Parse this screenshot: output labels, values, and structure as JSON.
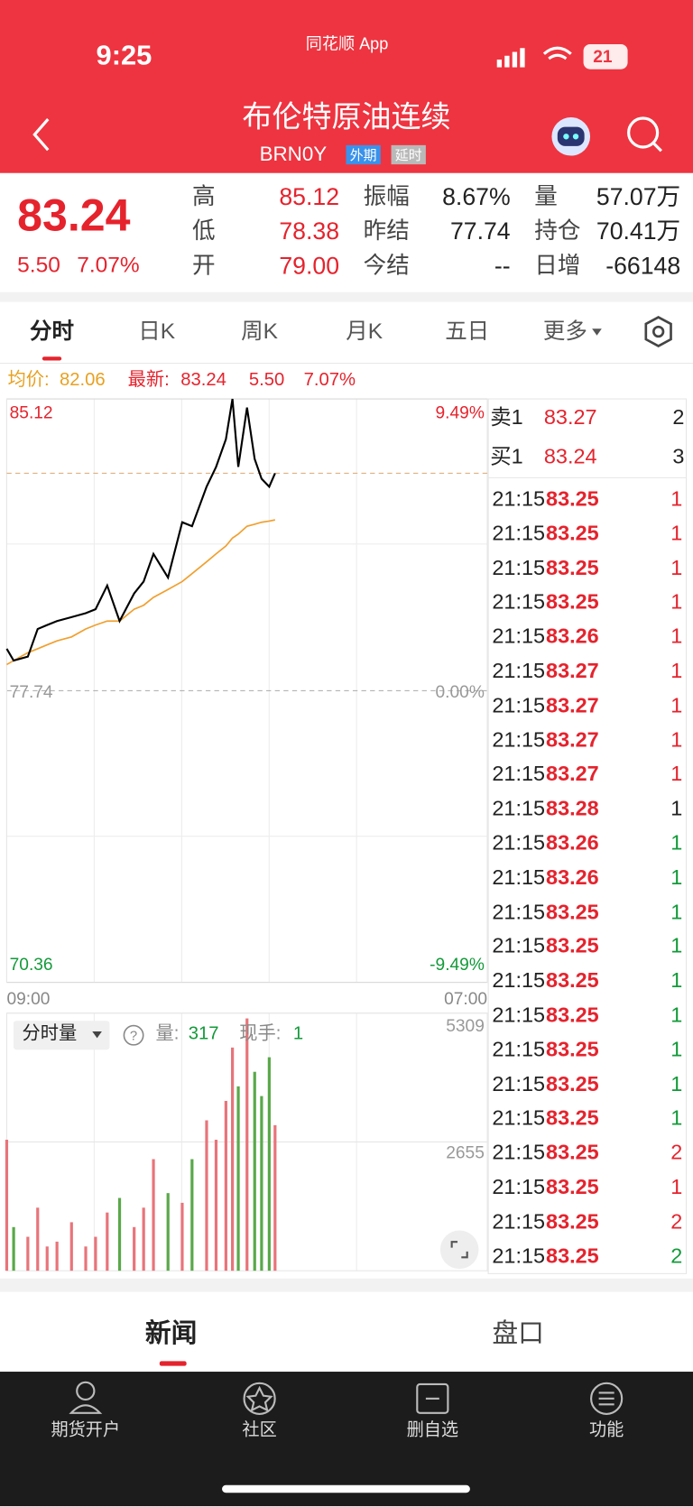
{
  "status_bar": {
    "time": "9:25",
    "app": "同花顺 App",
    "battery": "21"
  },
  "header": {
    "title": "布伦特原油连续",
    "code": "BRN0Y",
    "tags": [
      "外期",
      "延时"
    ]
  },
  "quote": {
    "price": "83.24",
    "change": "5.50",
    "change_pct": "7.07%",
    "stats": [
      {
        "label": "高",
        "value": "85.12"
      },
      {
        "label": "振幅",
        "value": "8.67%"
      },
      {
        "label": "量",
        "value": "57.07万"
      },
      {
        "label": "低",
        "value": "78.38"
      },
      {
        "label": "昨结",
        "value": "77.74"
      },
      {
        "label": "持仓",
        "value": "70.41万"
      },
      {
        "label": "开",
        "value": "79.00"
      },
      {
        "label": "今结",
        "value": "--"
      },
      {
        "label": "日增",
        "value": "-66148"
      }
    ]
  },
  "tabs": [
    "分时",
    "日K",
    "周K",
    "月K",
    "五日",
    "更多"
  ],
  "chart_info": {
    "avg_label": "均价:",
    "avg": "82.06",
    "last_label": "最新:",
    "last": "83.24",
    "change": "5.50",
    "change_pct": "7.07%"
  },
  "volume_info": {
    "selector": "分时量",
    "volume_label": "量:",
    "volume": "317",
    "hand_label": "现手:",
    "hand": "1"
  },
  "chart_data": [
    {
      "type": "line",
      "x": [
        0,
        19,
        58,
        85,
        111,
        138,
        178,
        217,
        244,
        276,
        310,
        350,
        376,
        403,
        443,
        482,
        509,
        549,
        575,
        602,
        620,
        636,
        660,
        681,
        700,
        721,
        737
      ],
      "xlim": [
        0,
        1320
      ],
      "xticks": [
        {
          "value": 0,
          "label": "09:00"
        },
        {
          "value": 1320,
          "label": "07:00"
        }
      ],
      "ylim": [
        70.36,
        85.12
      ],
      "yticks": [
        85.12,
        77.74,
        70.36
      ],
      "y2lim": [
        -9.49,
        9.49
      ],
      "y2ticks": [
        {
          "value": 9.49,
          "label": "9.49%"
        },
        {
          "value": 0,
          "label": "0.00%"
        },
        {
          "value": -9.49,
          "label": "-9.49%"
        }
      ],
      "series": [
        {
          "color": "#000000",
          "values": [
            78.8,
            78.5,
            78.6,
            79.3,
            79.4,
            79.5,
            79.6,
            79.7,
            79.8,
            80.4,
            79.5,
            80.2,
            80.5,
            81.2,
            80.6,
            82.0,
            81.9,
            82.9,
            83.4,
            84.1,
            85.12,
            83.4,
            84.9,
            83.6,
            83.1,
            82.9,
            83.24
          ]
        },
        {
          "color": "#f0a030",
          "values": [
            78.4,
            78.5,
            78.7,
            78.8,
            78.9,
            79.0,
            79.1,
            79.3,
            79.4,
            79.5,
            79.5,
            79.8,
            79.9,
            80.1,
            80.3,
            80.5,
            80.7,
            81.0,
            81.2,
            81.4,
            81.6,
            81.7,
            81.9,
            81.95,
            82.0,
            82.03,
            82.06
          ]
        }
      ]
    },
    {
      "type": "bar",
      "x": [
        0,
        19,
        58,
        85,
        111,
        138,
        178,
        217,
        244,
        276,
        310,
        350,
        376,
        403,
        443,
        482,
        509,
        549,
        575,
        602,
        620,
        636,
        660,
        681,
        700,
        721,
        737
      ],
      "xlim": [
        0,
        1320
      ],
      "ylim": [
        0,
        5309
      ],
      "yticks": [
        2655,
        5309
      ],
      "up_color": "#e8747a",
      "down_color": "#5aa84a",
      "values": [
        2700,
        900,
        700,
        1300,
        500,
        600,
        1000,
        500,
        700,
        1200,
        1500,
        900,
        1300,
        2300,
        1600,
        1400,
        2300,
        3100,
        2700,
        3500,
        4600,
        3800,
        5200,
        4100,
        3600,
        4400,
        3000
      ]
    }
  ],
  "order_book": {
    "quotes": [
      {
        "label": "卖1",
        "price": "83.27",
        "qty": "2"
      },
      {
        "label": "买1",
        "price": "83.24",
        "qty": "3"
      }
    ],
    "ticks": [
      {
        "time": "21:15",
        "price": "83.25",
        "qty": "1",
        "qty_color": "#e5232d"
      },
      {
        "time": "21:15",
        "price": "83.25",
        "qty": "1",
        "qty_color": "#e5232d"
      },
      {
        "time": "21:15",
        "price": "83.25",
        "qty": "1",
        "qty_color": "#e5232d"
      },
      {
        "time": "21:15",
        "price": "83.25",
        "qty": "1",
        "qty_color": "#e5232d"
      },
      {
        "time": "21:15",
        "price": "83.26",
        "qty": "1",
        "qty_color": "#e5232d"
      },
      {
        "time": "21:15",
        "price": "83.27",
        "qty": "1",
        "qty_color": "#e5232d"
      },
      {
        "time": "21:15",
        "price": "83.27",
        "qty": "1",
        "qty_color": "#e5232d"
      },
      {
        "time": "21:15",
        "price": "83.27",
        "qty": "1",
        "qty_color": "#e5232d"
      },
      {
        "time": "21:15",
        "price": "83.27",
        "qty": "1",
        "qty_color": "#e5232d"
      },
      {
        "time": "21:15",
        "price": "83.28",
        "qty": "1",
        "qty_color": "#222222"
      },
      {
        "time": "21:15",
        "price": "83.26",
        "qty": "1",
        "qty_color": "#139a3a"
      },
      {
        "time": "21:15",
        "price": "83.26",
        "qty": "1",
        "qty_color": "#139a3a"
      },
      {
        "time": "21:15",
        "price": "83.25",
        "qty": "1",
        "qty_color": "#139a3a"
      },
      {
        "time": "21:15",
        "price": "83.25",
        "qty": "1",
        "qty_color": "#139a3a"
      },
      {
        "time": "21:15",
        "price": "83.25",
        "qty": "1",
        "qty_color": "#139a3a"
      },
      {
        "time": "21:15",
        "price": "83.25",
        "qty": "1",
        "qty_color": "#139a3a"
      },
      {
        "time": "21:15",
        "price": "83.25",
        "qty": "1",
        "qty_color": "#139a3a"
      },
      {
        "time": "21:15",
        "price": "83.25",
        "qty": "1",
        "qty_color": "#139a3a"
      },
      {
        "time": "21:15",
        "price": "83.25",
        "qty": "1",
        "qty_color": "#139a3a"
      },
      {
        "time": "21:15",
        "price": "83.25",
        "qty": "2",
        "qty_color": "#e5232d"
      },
      {
        "time": "21:15",
        "price": "83.25",
        "qty": "1",
        "qty_color": "#e5232d"
      },
      {
        "time": "21:15",
        "price": "83.25",
        "qty": "2",
        "qty_color": "#e5232d"
      },
      {
        "time": "21:15",
        "price": "83.25",
        "qty": "2",
        "qty_color": "#139a3a"
      }
    ]
  },
  "bottom_tabs": [
    "新闻",
    "盘口"
  ],
  "nav": [
    "期货开户",
    "社区",
    "删自选",
    "功能"
  ]
}
